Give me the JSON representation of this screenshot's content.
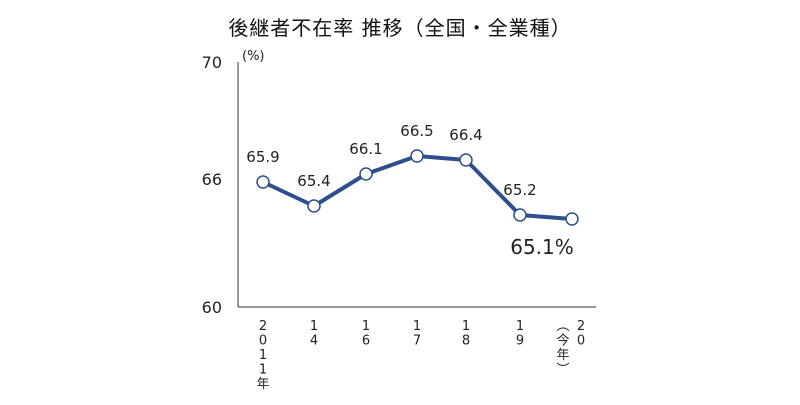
{
  "chart_data": {
    "type": "line",
    "title": "後継者不在率 推移（全国・全業種）",
    "y_unit": "(%)",
    "ylim": [
      60,
      70
    ],
    "y_ticks": [
      "60",
      "66",
      "70"
    ],
    "categories": [
      "2011年",
      "14",
      "16",
      "17",
      "18",
      "19",
      "20(今年)"
    ],
    "x_tick_columns": [
      [
        [
          "2",
          "0",
          "1",
          "1",
          "年"
        ]
      ],
      [
        [
          "1",
          "4"
        ]
      ],
      [
        [
          "1",
          "6"
        ]
      ],
      [
        [
          "1",
          "7"
        ]
      ],
      [
        [
          "1",
          "8"
        ]
      ],
      [
        [
          "1",
          "9"
        ]
      ],
      [
        [
          "︵",
          "今",
          "年",
          "︶"
        ],
        [
          "2",
          "0"
        ]
      ]
    ],
    "values": [
      65.9,
      65.4,
      66.1,
      66.5,
      66.4,
      65.2,
      65.1
    ],
    "value_labels": [
      "65.9",
      "65.4",
      "66.1",
      "66.5",
      "66.4",
      "65.2",
      "65.1%"
    ],
    "series_color": "#2E4E8F",
    "marker_fill": "#ffffff",
    "axis_color": "#333333",
    "grid": false,
    "legend": "none"
  }
}
